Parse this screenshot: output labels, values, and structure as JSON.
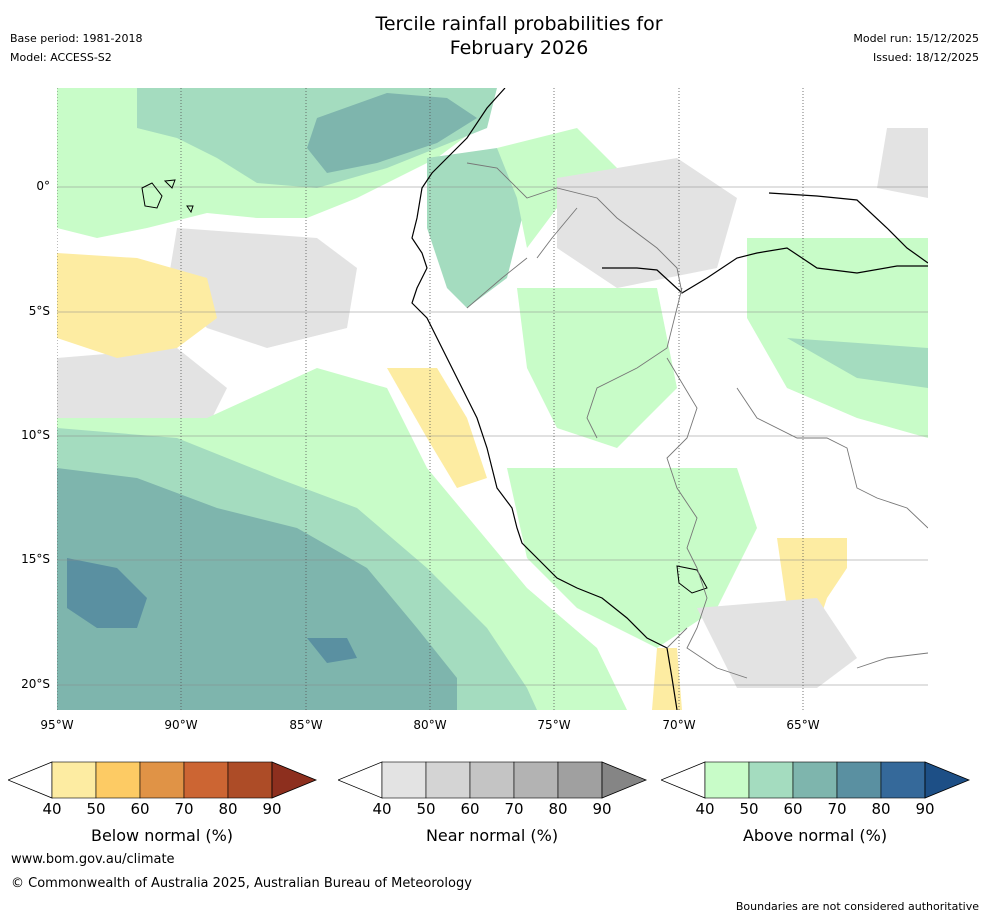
{
  "header": {
    "title_line1": "Tercile rainfall probabilities for",
    "title_line2": "February 2026",
    "base_period": "Base period: 1981-2018",
    "model": "Model: ACCESS-S2",
    "model_run": "Model run: 15/12/2025",
    "issued": "Issued: 18/12/2025"
  },
  "axes": {
    "lat_labels": [
      "0°",
      "5°S",
      "10°S",
      "15°S",
      "20°S"
    ],
    "lon_labels": [
      "95°W",
      "90°W",
      "85°W",
      "80°W",
      "75°W",
      "70°W",
      "65°W"
    ]
  },
  "colorbars": [
    {
      "label": "Below normal (%)",
      "ticks": [
        "40",
        "50",
        "60",
        "70",
        "80",
        "90"
      ],
      "colors": [
        "#ffffff",
        "#fdeca2",
        "#fdcb64",
        "#e09346",
        "#cc6533",
        "#ad4c27",
        "#8d2f1e"
      ]
    },
    {
      "label": "Near normal (%)",
      "ticks": [
        "40",
        "50",
        "60",
        "70",
        "80",
        "90"
      ],
      "colors": [
        "#ffffff",
        "#e3e3e3",
        "#d4d4d4",
        "#c4c4c4",
        "#b3b3b3",
        "#a0a0a0",
        "#858585"
      ]
    },
    {
      "label": "Above normal (%)",
      "ticks": [
        "40",
        "50",
        "60",
        "70",
        "80",
        "90"
      ],
      "colors": [
        "#ffffff",
        "#c8fcc8",
        "#a4dcbf",
        "#7eb5ad",
        "#5a90a1",
        "#35699a",
        "#1d4f86"
      ]
    }
  ],
  "footer": {
    "url": "www.bom.gov.au/climate",
    "copyright": "© Commonwealth of Australia 2025, Australian Bureau of Meteorology",
    "disclaimer": "Boundaries are not considered authoritative"
  }
}
